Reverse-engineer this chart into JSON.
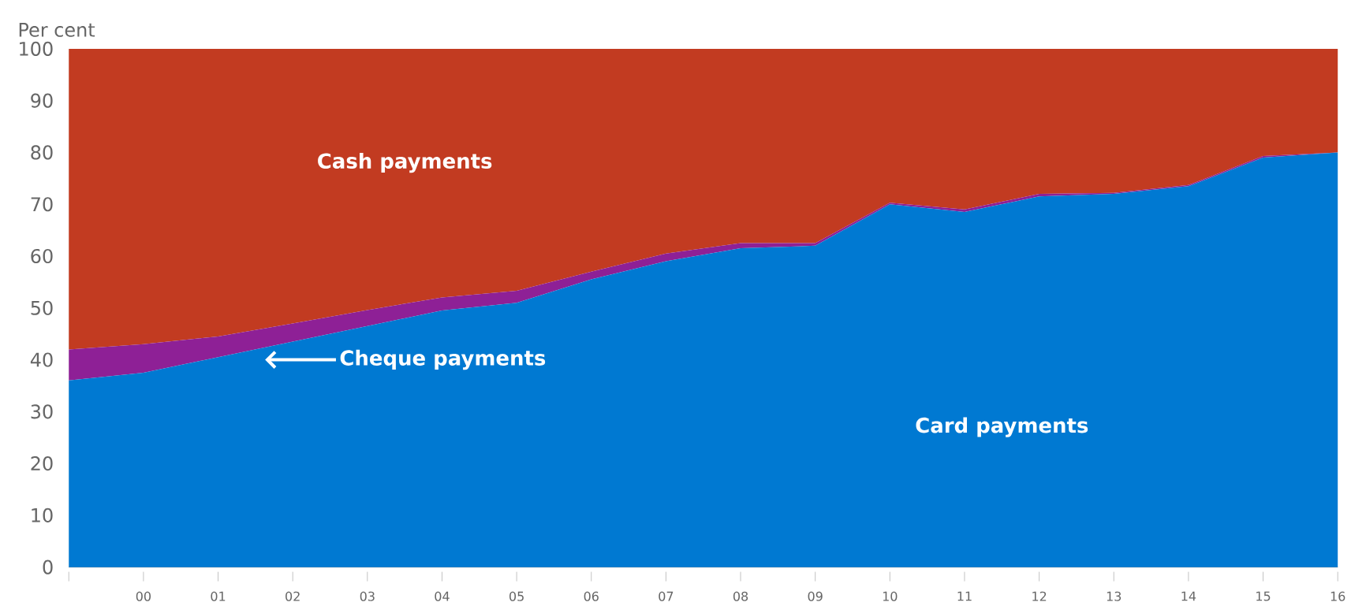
{
  "chart_data": {
    "type": "area",
    "stacked": true,
    "ylabel": "Per cent",
    "categories": [
      null,
      "00",
      "01",
      "02",
      "03",
      "04",
      "05",
      "06",
      "07",
      "08",
      "09",
      "10",
      "11",
      "12",
      "13",
      "14",
      "15",
      "16"
    ],
    "series": [
      {
        "name": "Card payments",
        "color": "#0079d2",
        "values": [
          36,
          37.5,
          40.5,
          43.5,
          46.5,
          49.5,
          51,
          55.5,
          59,
          61.5,
          62,
          70,
          68.5,
          71.5,
          72,
          73.5,
          79,
          80
        ]
      },
      {
        "name": "Cheque payments",
        "color": "#8e2096",
        "values": [
          6,
          5.5,
          4,
          3.5,
          3.1,
          2.5,
          2.3,
          1.5,
          1.5,
          1,
          0.5,
          0.3,
          0.5,
          0.5,
          0.2,
          0.2,
          0.3,
          0
        ]
      },
      {
        "name": "Cash payments",
        "color": "#c23b21",
        "values": [
          58,
          57,
          55.5,
          53,
          50.4,
          48,
          46.7,
          43,
          39.5,
          37.5,
          37.5,
          29.7,
          31,
          28,
          27.8,
          26.3,
          20.7,
          20
        ]
      }
    ],
    "ylim": [
      0,
      100
    ],
    "yticks": [
      0,
      10,
      20,
      30,
      40,
      50,
      60,
      70,
      80,
      90,
      100
    ]
  }
}
